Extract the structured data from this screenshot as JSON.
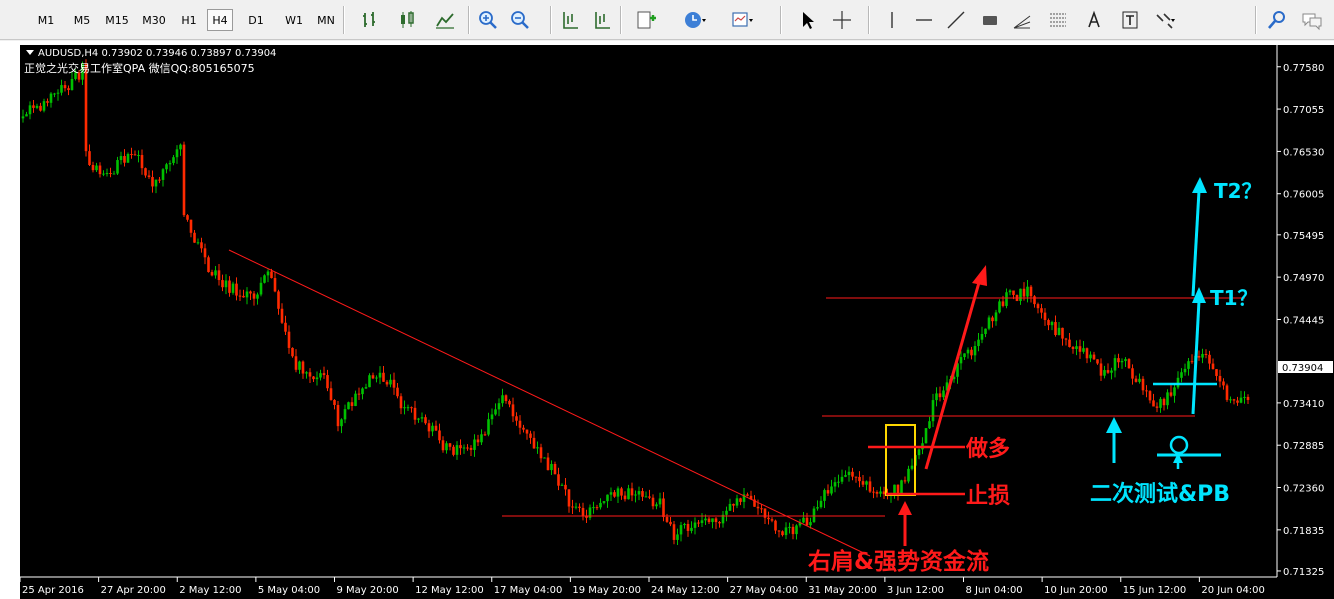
{
  "toolbar": {
    "timeframes": [
      "M1",
      "M5",
      "M15",
      "M30",
      "H1",
      "H4",
      "D1",
      "W1",
      "MN"
    ],
    "active_timeframe": "H4",
    "icons": [
      "bar-chart-icon",
      "candlestick-icon",
      "line-chart-icon",
      "zoom-in-icon",
      "zoom-out-icon",
      "scroll-chart-icon",
      "chart-shift-icon",
      "indicators-icon",
      "periods-clock-icon",
      "templates-icon",
      "cursor-icon",
      "crosshair-icon",
      "vertical-line-icon",
      "horizontal-line-icon",
      "trend-line-icon",
      "rectangle-icon",
      "gann-tool-icon",
      "fibonacci-icon",
      "text-icon",
      "text-label-icon",
      "arrows-icon",
      "search-icon",
      "chat-icon"
    ]
  },
  "chart_data": {
    "type": "candlestick",
    "header": "AUDUSD,H4  0.73902 0.73946 0.73897 0.73904",
    "subtitle": "正觉之光交易工作室QPA 微信QQ:805165075",
    "ylim": [
      0.7125,
      0.7785
    ],
    "y_ticks": [
      "0.77580",
      "0.77055",
      "0.76530",
      "0.76005",
      "0.75495",
      "0.74970",
      "0.74445",
      "0.73410",
      "0.72885",
      "0.72360",
      "0.71835",
      "0.71325"
    ],
    "current_price": "0.73904",
    "x_ticks": [
      "25 Apr 2016",
      "27 Apr 20:00",
      "2 May 12:00",
      "5 May 04:00",
      "9 May 20:00",
      "12 May 12:00",
      "17 May 04:00",
      "19 May 20:00",
      "24 May 12:00",
      "27 May 04:00",
      "31 May 20:00",
      "3 Jun 12:00",
      "8 Jun 04:00",
      "10 Jun 20:00",
      "15 Jun 12:00",
      "20 Jun 04:00"
    ],
    "colors": {
      "background": "#000000",
      "up": "#00c000",
      "down": "#ff2a00",
      "axis": "#ffffff",
      "annotation_red": "#ff1a1a",
      "annotation_cyan": "#00e5ff",
      "box": "#ffd800"
    },
    "close_path": [
      [
        0,
        0.77
      ],
      [
        6,
        0.771
      ],
      [
        14,
        0.774
      ],
      [
        17,
        0.7755
      ],
      [
        18,
        0.765
      ],
      [
        22,
        0.762
      ],
      [
        28,
        0.764
      ],
      [
        32,
        0.7655
      ],
      [
        36,
        0.7615
      ],
      [
        38,
        0.761
      ],
      [
        42,
        0.764
      ],
      [
        45,
        0.766
      ],
      [
        46,
        0.758
      ],
      [
        52,
        0.7515
      ],
      [
        57,
        0.749
      ],
      [
        63,
        0.7475
      ],
      [
        67,
        0.7475
      ],
      [
        70,
        0.7505
      ],
      [
        74,
        0.744
      ],
      [
        78,
        0.739
      ],
      [
        86,
        0.737
      ],
      [
        90,
        0.732
      ],
      [
        96,
        0.735
      ],
      [
        100,
        0.7375
      ],
      [
        104,
        0.737
      ],
      [
        108,
        0.734
      ],
      [
        114,
        0.732
      ],
      [
        120,
        0.729
      ],
      [
        125,
        0.728
      ],
      [
        130,
        0.729
      ],
      [
        137,
        0.7345
      ],
      [
        140,
        0.733
      ],
      [
        146,
        0.7285
      ],
      [
        152,
        0.7255
      ],
      [
        156,
        0.722
      ],
      [
        160,
        0.72
      ],
      [
        164,
        0.7215
      ],
      [
        170,
        0.723
      ],
      [
        176,
        0.7225
      ],
      [
        182,
        0.7215
      ],
      [
        186,
        0.7175
      ],
      [
        190,
        0.719
      ],
      [
        198,
        0.7195
      ],
      [
        202,
        0.721
      ],
      [
        206,
        0.7225
      ],
      [
        210,
        0.7215
      ],
      [
        216,
        0.7185
      ],
      [
        220,
        0.718
      ],
      [
        226,
        0.7205
      ],
      [
        230,
        0.7235
      ],
      [
        234,
        0.7255
      ],
      [
        238,
        0.7245
      ],
      [
        242,
        0.7235
      ],
      [
        246,
        0.7225
      ],
      [
        250,
        0.7235
      ],
      [
        254,
        0.726
      ],
      [
        256,
        0.7285
      ],
      [
        260,
        0.734
      ],
      [
        264,
        0.737
      ],
      [
        270,
        0.74
      ],
      [
        276,
        0.744
      ],
      [
        282,
        0.748
      ],
      [
        284,
        0.7475
      ],
      [
        288,
        0.748
      ],
      [
        292,
        0.744
      ],
      [
        298,
        0.742
      ],
      [
        304,
        0.74
      ],
      [
        308,
        0.738
      ],
      [
        314,
        0.7395
      ],
      [
        318,
        0.737
      ],
      [
        322,
        0.7345
      ],
      [
        326,
        0.734
      ],
      [
        330,
        0.7375
      ],
      [
        336,
        0.7405
      ],
      [
        340,
        0.7385
      ],
      [
        344,
        0.7345
      ],
      [
        348,
        0.735
      ],
      [
        350,
        0.7345
      ]
    ],
    "annotations": {
      "long_label": "做多",
      "stop_label": "止损",
      "shoulder_label": "右肩&强势资金流",
      "retest_label": "二次测试&PB",
      "t1_label": "T1？",
      "t2_label": "T2？"
    }
  }
}
